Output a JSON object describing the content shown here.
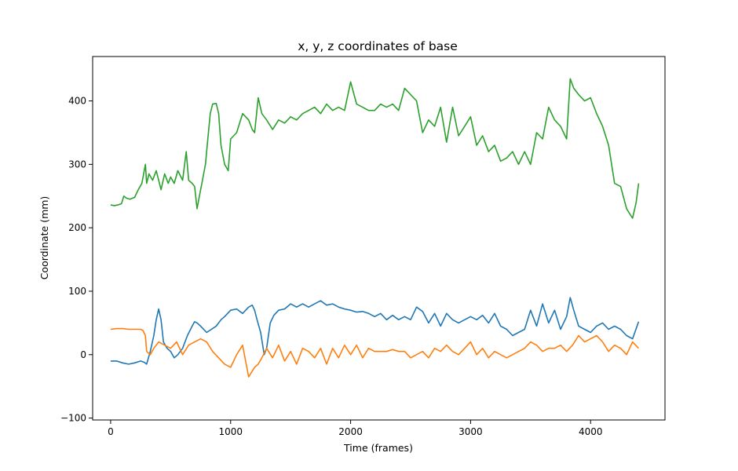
{
  "chart_data": {
    "type": "line",
    "title": "x, y, z coordinates of base",
    "xlabel": "Time (frames)",
    "ylabel": "Coordinate (mm)",
    "xlim": [
      -150,
      4620
    ],
    "ylim": [
      -103,
      470
    ],
    "xticks": [
      0,
      1000,
      2000,
      3000,
      4000
    ],
    "yticks": [
      -100,
      0,
      100,
      200,
      300,
      400
    ],
    "xtick_labels": [
      "0",
      "1000",
      "2000",
      "3000",
      "4000"
    ],
    "ytick_labels": [
      "−100",
      "0",
      "100",
      "200",
      "300",
      "400"
    ],
    "grid": false,
    "series": [
      {
        "color": "#1f77b4",
        "x": [
          0,
          50,
          100,
          150,
          200,
          250,
          280,
          300,
          330,
          360,
          380,
          400,
          420,
          440,
          470,
          500,
          530,
          560,
          600,
          640,
          680,
          700,
          720,
          750,
          800,
          840,
          880,
          920,
          950,
          1000,
          1050,
          1100,
          1150,
          1180,
          1200,
          1220,
          1250,
          1280,
          1300,
          1330,
          1360,
          1400,
          1450,
          1500,
          1550,
          1600,
          1650,
          1700,
          1750,
          1800,
          1850,
          1900,
          1950,
          2000,
          2050,
          2100,
          2150,
          2200,
          2250,
          2300,
          2350,
          2400,
          2450,
          2500,
          2550,
          2600,
          2650,
          2700,
          2750,
          2800,
          2850,
          2900,
          2950,
          3000,
          3050,
          3100,
          3150,
          3200,
          3250,
          3300,
          3350,
          3400,
          3450,
          3500,
          3550,
          3600,
          3650,
          3700,
          3750,
          3800,
          3830,
          3860,
          3900,
          3950,
          4000,
          4050,
          4100,
          4150,
          4200,
          4250,
          4300,
          4350,
          4400
        ],
        "y": [
          -10,
          -10,
          -13,
          -15,
          -13,
          -10,
          -12,
          -15,
          5,
          30,
          55,
          72,
          55,
          20,
          10,
          5,
          -5,
          0,
          10,
          30,
          45,
          52,
          50,
          45,
          35,
          40,
          45,
          55,
          60,
          70,
          72,
          65,
          75,
          78,
          70,
          55,
          35,
          0,
          10,
          50,
          62,
          70,
          72,
          80,
          75,
          80,
          75,
          80,
          85,
          78,
          80,
          75,
          72,
          70,
          67,
          68,
          65,
          60,
          65,
          55,
          62,
          55,
          60,
          55,
          75,
          68,
          50,
          65,
          45,
          65,
          55,
          50,
          55,
          60,
          55,
          62,
          50,
          65,
          45,
          40,
          30,
          35,
          40,
          70,
          45,
          80,
          50,
          70,
          40,
          60,
          90,
          70,
          45,
          40,
          35,
          45,
          50,
          40,
          45,
          40,
          30,
          25,
          52
        ]
      },
      {
        "color": "#ff7f0e",
        "x": [
          0,
          50,
          100,
          150,
          200,
          250,
          270,
          290,
          300,
          330,
          360,
          400,
          450,
          500,
          550,
          600,
          650,
          700,
          750,
          800,
          850,
          900,
          950,
          1000,
          1050,
          1100,
          1150,
          1200,
          1230,
          1260,
          1300,
          1350,
          1400,
          1450,
          1500,
          1550,
          1600,
          1650,
          1700,
          1750,
          1800,
          1850,
          1900,
          1950,
          2000,
          2050,
          2100,
          2150,
          2200,
          2250,
          2300,
          2350,
          2400,
          2450,
          2500,
          2550,
          2600,
          2650,
          2700,
          2750,
          2800,
          2850,
          2900,
          2950,
          3000,
          3050,
          3100,
          3150,
          3200,
          3250,
          3300,
          3350,
          3400,
          3450,
          3500,
          3550,
          3600,
          3650,
          3700,
          3750,
          3800,
          3850,
          3900,
          3950,
          4000,
          4050,
          4100,
          4150,
          4200,
          4250,
          4300,
          4350,
          4400
        ],
        "y": [
          40,
          41,
          41,
          40,
          40,
          40,
          38,
          30,
          5,
          0,
          10,
          20,
          15,
          10,
          20,
          0,
          15,
          20,
          25,
          20,
          5,
          -5,
          -15,
          -20,
          0,
          15,
          -35,
          -20,
          -15,
          -5,
          10,
          -5,
          15,
          -10,
          5,
          -15,
          10,
          5,
          -5,
          10,
          -15,
          10,
          -5,
          15,
          0,
          15,
          -5,
          10,
          5,
          5,
          5,
          8,
          5,
          5,
          -5,
          0,
          5,
          -5,
          10,
          5,
          15,
          5,
          0,
          10,
          20,
          0,
          10,
          -5,
          5,
          0,
          -5,
          0,
          5,
          10,
          20,
          15,
          5,
          10,
          10,
          15,
          5,
          15,
          30,
          20,
          25,
          30,
          20,
          5,
          15,
          10,
          0,
          20,
          10
        ]
      },
      {
        "color": "#2ca02c",
        "x": [
          0,
          30,
          60,
          90,
          110,
          130,
          160,
          200,
          230,
          260,
          290,
          300,
          320,
          350,
          380,
          400,
          420,
          450,
          480,
          500,
          530,
          560,
          600,
          630,
          650,
          680,
          700,
          720,
          740,
          760,
          790,
          810,
          830,
          850,
          880,
          900,
          920,
          950,
          980,
          1000,
          1050,
          1100,
          1150,
          1180,
          1200,
          1230,
          1260,
          1300,
          1350,
          1400,
          1450,
          1500,
          1550,
          1600,
          1650,
          1700,
          1750,
          1800,
          1850,
          1900,
          1950,
          2000,
          2050,
          2100,
          2150,
          2200,
          2250,
          2300,
          2350,
          2400,
          2450,
          2500,
          2550,
          2600,
          2650,
          2700,
          2750,
          2800,
          2850,
          2900,
          2950,
          3000,
          3050,
          3100,
          3150,
          3200,
          3250,
          3300,
          3350,
          3400,
          3450,
          3500,
          3550,
          3600,
          3650,
          3700,
          3750,
          3800,
          3830,
          3860,
          3900,
          3950,
          4000,
          4050,
          4100,
          4150,
          4200,
          4250,
          4300,
          4350,
          4380,
          4400
        ],
        "y": [
          236,
          235,
          236,
          238,
          250,
          247,
          245,
          248,
          260,
          270,
          300,
          270,
          285,
          275,
          290,
          275,
          260,
          285,
          270,
          280,
          270,
          290,
          275,
          320,
          275,
          270,
          265,
          230,
          250,
          270,
          300,
          340,
          380,
          395,
          396,
          380,
          330,
          300,
          290,
          340,
          350,
          380,
          370,
          355,
          350,
          405,
          380,
          370,
          355,
          370,
          365,
          375,
          370,
          380,
          385,
          390,
          380,
          395,
          385,
          390,
          385,
          430,
          395,
          390,
          385,
          385,
          395,
          390,
          395,
          385,
          420,
          410,
          400,
          350,
          370,
          360,
          390,
          335,
          390,
          345,
          360,
          375,
          330,
          345,
          320,
          330,
          305,
          310,
          320,
          300,
          320,
          300,
          350,
          340,
          390,
          370,
          360,
          340,
          435,
          420,
          410,
          400,
          405,
          380,
          360,
          330,
          270,
          265,
          230,
          215,
          240,
          270
        ]
      }
    ]
  }
}
